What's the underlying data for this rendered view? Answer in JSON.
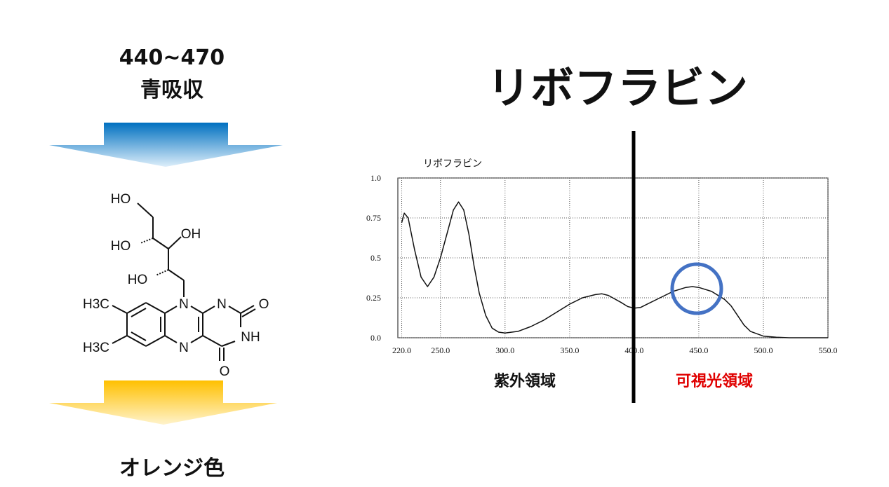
{
  "absorption": {
    "range": "440~470",
    "label": "青吸収"
  },
  "result": "オレンジ色",
  "molecule": {
    "atoms": [
      "HO",
      "HO",
      "OH",
      "HO",
      "N",
      "N",
      "O",
      "NH",
      "N",
      "O",
      "H3C",
      "H3C"
    ]
  },
  "chart_data": {
    "type": "line",
    "title": "リボフラビン",
    "subtitle": "リボフラビン",
    "x": [
      220,
      222,
      225,
      230,
      235,
      240,
      245,
      250,
      255,
      260,
      264,
      268,
      272,
      276,
      280,
      285,
      290,
      295,
      300,
      310,
      320,
      330,
      340,
      350,
      360,
      370,
      375,
      380,
      390,
      395,
      400,
      405,
      410,
      420,
      430,
      440,
      445,
      450,
      460,
      470,
      475,
      480,
      485,
      490,
      500,
      510,
      520,
      550
    ],
    "series": [
      {
        "name": "リボフラビン",
        "color": "#111111",
        "values": [
          0.72,
          0.78,
          0.75,
          0.55,
          0.38,
          0.32,
          0.38,
          0.5,
          0.65,
          0.8,
          0.85,
          0.8,
          0.65,
          0.45,
          0.28,
          0.14,
          0.06,
          0.035,
          0.03,
          0.04,
          0.07,
          0.11,
          0.16,
          0.21,
          0.25,
          0.27,
          0.275,
          0.265,
          0.22,
          0.195,
          0.185,
          0.19,
          0.21,
          0.25,
          0.29,
          0.315,
          0.32,
          0.315,
          0.29,
          0.24,
          0.2,
          0.14,
          0.08,
          0.04,
          0.01,
          0.003,
          0,
          0
        ]
      }
    ],
    "xlim": [
      217,
      550
    ],
    "ylim": [
      0,
      1
    ],
    "xticks": [
      {
        "value": 220,
        "label": "220.0"
      },
      {
        "value": 250,
        "label": "250.0"
      },
      {
        "value": 300,
        "label": "300.0"
      },
      {
        "value": 350,
        "label": "350.0"
      },
      {
        "value": 400,
        "label": "400.0"
      },
      {
        "value": 450,
        "label": "450.0"
      },
      {
        "value": 500,
        "label": "500.0"
      },
      {
        "value": 550,
        "label": "550.0"
      }
    ],
    "yticks": [
      {
        "value": 0,
        "label": "0.0"
      },
      0.25,
      0.5,
      0.75,
      {
        "value": 1,
        "label": "1.0"
      }
    ],
    "grid": true,
    "regions": [
      {
        "label": "紫外領域",
        "color": "#111111"
      },
      {
        "label": "可視光領域",
        "color": "#e00000"
      }
    ]
  }
}
